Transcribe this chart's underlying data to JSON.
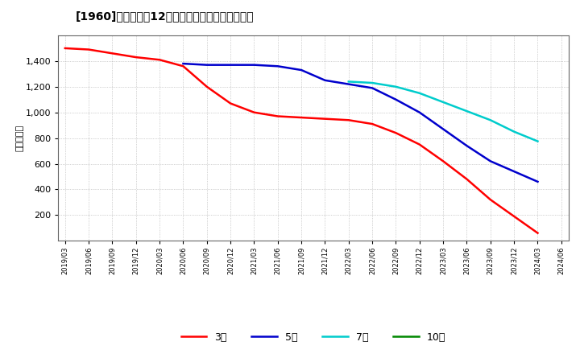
{
  "title_text": "[1960]　経常利益12か月移動合計の平均値の推移",
  "ylabel": "（百万円）",
  "background_color": "#ffffff",
  "plot_bg_color": "#ffffff",
  "grid_color": "#aaaaaa",
  "ylim": [
    0,
    1600
  ],
  "yticks": [
    200,
    400,
    600,
    800,
    1000,
    1200,
    1400
  ],
  "legend_labels": [
    "3年",
    "5年",
    "7年",
    "10年"
  ],
  "legend_colors": [
    "#ff0000",
    "#0000cc",
    "#00cccc",
    "#008800"
  ],
  "series": {
    "3yr": {
      "color": "#ff0000",
      "dates": [
        "2019/03",
        "2019/06",
        "2019/09",
        "2019/12",
        "2020/03",
        "2020/06",
        "2020/09",
        "2020/12",
        "2021/03",
        "2021/06",
        "2021/09",
        "2021/12",
        "2022/03",
        "2022/06",
        "2022/09",
        "2022/12",
        "2023/03",
        "2023/06",
        "2023/09",
        "2023/12",
        "2024/03"
      ],
      "values": [
        1500,
        1490,
        1460,
        1430,
        1410,
        1360,
        1200,
        1070,
        1000,
        970,
        960,
        950,
        940,
        910,
        840,
        750,
        620,
        480,
        320,
        190,
        60
      ]
    },
    "5yr": {
      "color": "#0000cc",
      "dates": [
        "2020/06",
        "2020/09",
        "2020/12",
        "2021/03",
        "2021/06",
        "2021/09",
        "2021/12",
        "2022/03",
        "2022/06",
        "2022/09",
        "2022/12",
        "2023/03",
        "2023/06",
        "2023/09",
        "2023/12",
        "2024/03"
      ],
      "values": [
        1380,
        1370,
        1370,
        1370,
        1360,
        1330,
        1250,
        1220,
        1190,
        1100,
        1000,
        870,
        740,
        620,
        540,
        460
      ]
    },
    "7yr": {
      "color": "#00cccc",
      "dates": [
        "2022/03",
        "2022/06",
        "2022/09",
        "2022/12",
        "2023/03",
        "2023/06",
        "2023/09",
        "2023/12",
        "2024/03"
      ],
      "values": [
        1240,
        1230,
        1200,
        1150,
        1080,
        1010,
        940,
        850,
        775
      ]
    },
    "10yr": {
      "color": "#008800",
      "dates": [],
      "values": []
    }
  },
  "xtick_labels": [
    "2019/03",
    "2019/06",
    "2019/09",
    "2019/12",
    "2020/03",
    "2020/06",
    "2020/09",
    "2020/12",
    "2021/03",
    "2021/06",
    "2021/09",
    "2021/12",
    "2022/03",
    "2022/06",
    "2022/09",
    "2022/12",
    "2023/03",
    "2023/06",
    "2023/09",
    "2023/12",
    "2024/03",
    "2024/06"
  ]
}
